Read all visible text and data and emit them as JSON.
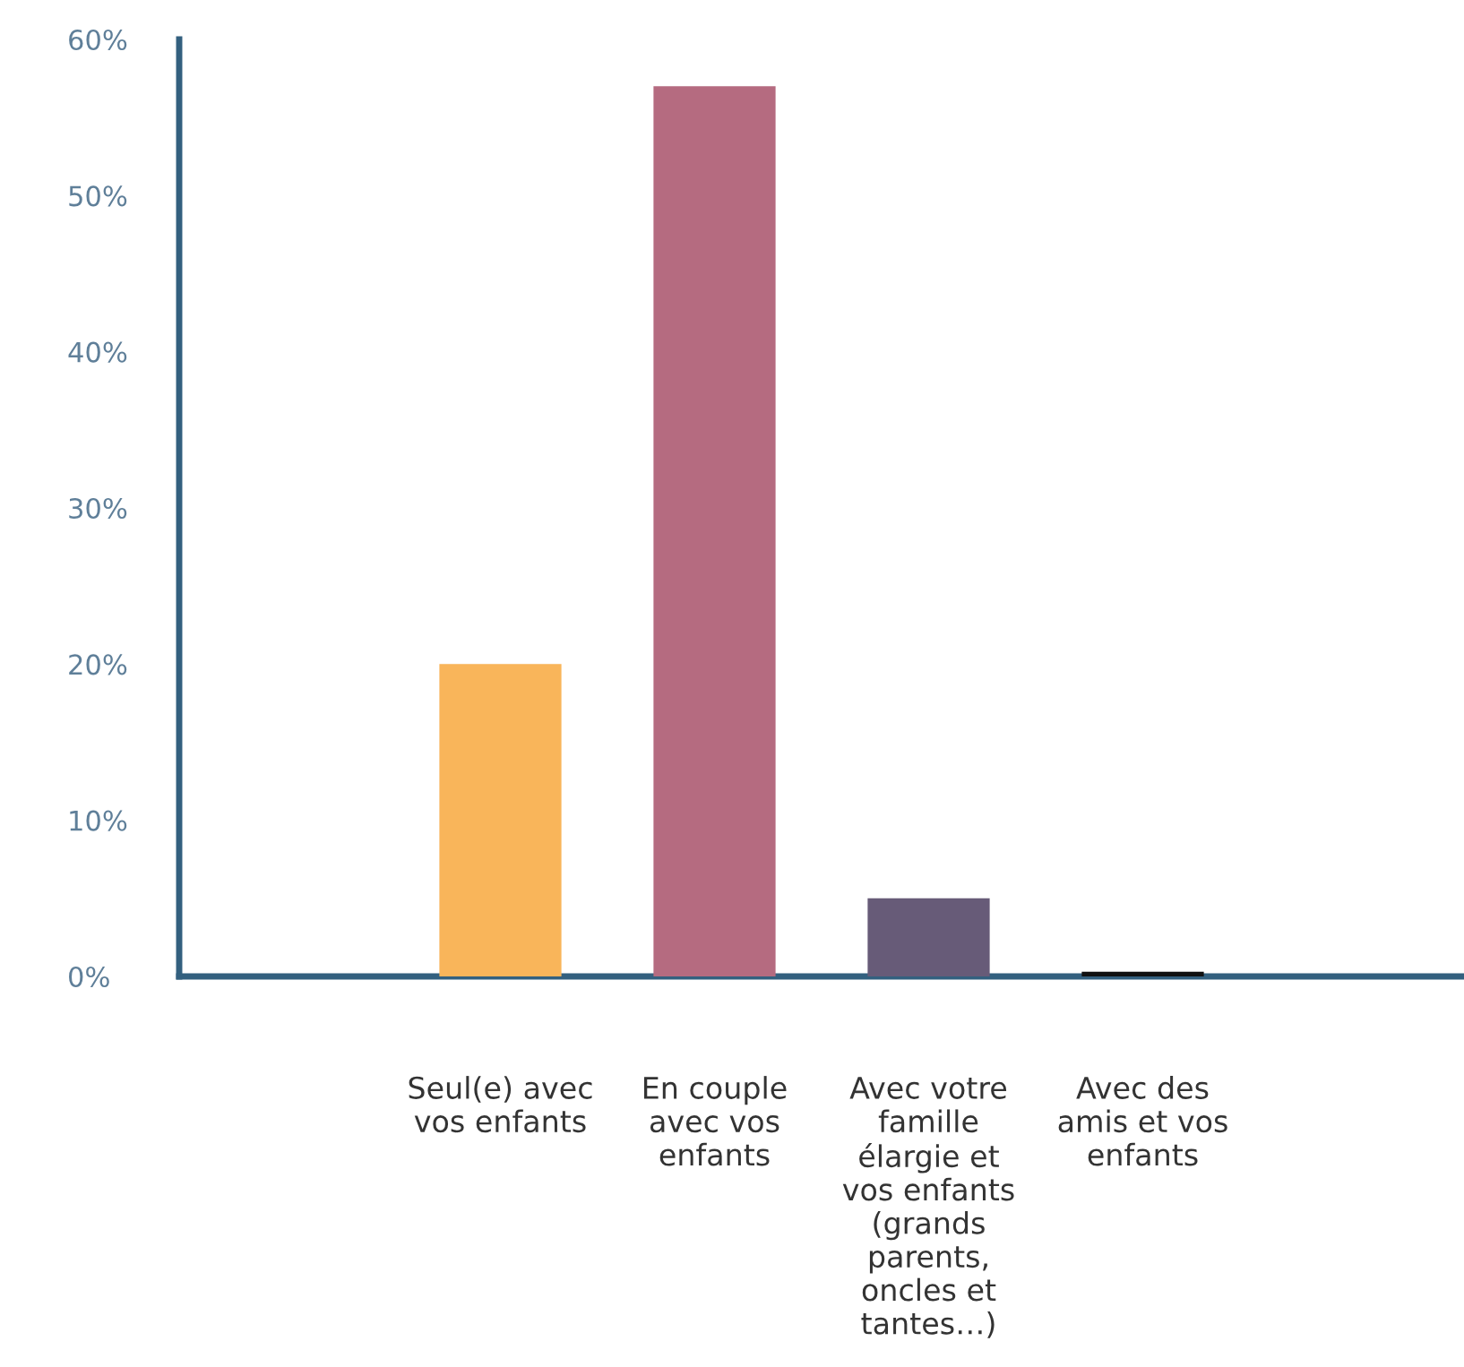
{
  "chart_data": {
    "type": "bar",
    "categories": [
      null,
      "Seul(e) avec\nvos enfants",
      "En couple\navec vos\nenfants",
      "Avec votre\nfamille\nélargie et\nvos enfants\n(grands\nparents,\noncles et\ntantes…)",
      "Avec des\namis et vos\nenfants",
      null
    ],
    "values": [
      null,
      20,
      57,
      5,
      0.3,
      null
    ],
    "colors": [
      null,
      "#f9b55a",
      "#b56b80",
      "#675b78",
      "#111111",
      null
    ],
    "ylim": [
      0,
      60
    ],
    "yticks": [
      {
        "value": 0,
        "label": "0%"
      },
      {
        "value": 10,
        "label": "10%"
      },
      {
        "value": 20,
        "label": "20%"
      },
      {
        "value": 30,
        "label": "30%"
      },
      {
        "value": 40,
        "label": "40%"
      },
      {
        "value": 50,
        "label": "50%"
      },
      {
        "value": 60,
        "label": "60%"
      }
    ],
    "grid": false,
    "legend": false
  }
}
